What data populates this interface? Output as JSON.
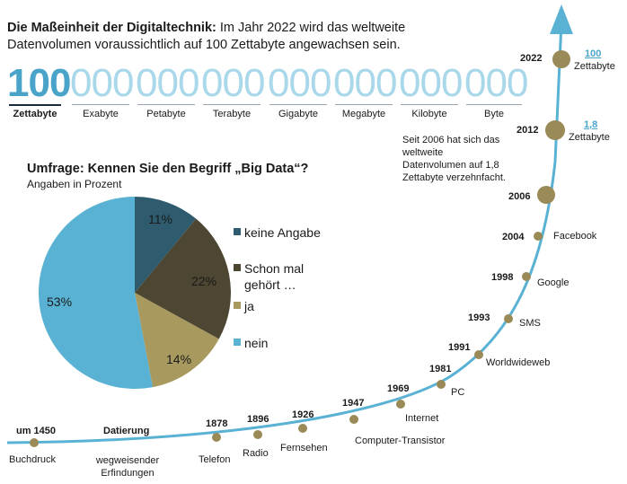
{
  "headline": {
    "bold": "Die Maßeinheit der Digitaltechnik:",
    "text": "Im Jahr 2022 wird das weltweite Datenvolumen voraussichtlich auf 100 Zettabyte angewachsen sein."
  },
  "units": [
    {
      "num": "100",
      "label": "Zettabyte"
    },
    {
      "num": "000",
      "label": "Exabyte"
    },
    {
      "num": "000",
      "label": "Petabyte"
    },
    {
      "num": "000",
      "label": "Terabyte"
    },
    {
      "num": "000",
      "label": "Gigabyte"
    },
    {
      "num": "000",
      "label": "Megabyte"
    },
    {
      "num": "000",
      "label": "Kilobyte"
    },
    {
      "num": "000",
      "label": "Byte"
    }
  ],
  "survey": {
    "title": "Umfrage: Kennen Sie den Begriff „Big Data“?",
    "subtitle": "Angaben in Prozent"
  },
  "chart_data": {
    "type": "pie",
    "title": "Umfrage: Kennen Sie den Begriff „Big Data“?",
    "subtitle": "Angaben in Prozent",
    "slices": [
      {
        "label": "keine Angabe",
        "value": 11,
        "pct": "11%",
        "color": "#2e5c6e"
      },
      {
        "label": "Schon mal gehört …",
        "value": 22,
        "pct": "22%",
        "color": "#4d4632"
      },
      {
        "label": "ja",
        "value": 14,
        "pct": "14%",
        "color": "#a89a5e"
      },
      {
        "label": "nein",
        "value": 53,
        "pct": "53%",
        "color": "#59b2d3"
      }
    ]
  },
  "legend": [
    {
      "label": "keine Angabe",
      "color": "#2e5c6e"
    },
    {
      "label_line1": "Schon mal",
      "label_line2": "gehört …",
      "color": "#4d4632"
    },
    {
      "label": "ja",
      "color": "#a89a5e"
    },
    {
      "label": "nein",
      "color": "#59b2d3"
    }
  ],
  "note": "Seit 2006 hat sich das weltweite Datenvolumen auf 1,8 Zettabyte verzehnfacht.",
  "timeline": {
    "axis_label": "Datierung",
    "axis_sub_line1": "wegweisender",
    "axis_sub_line2": "Erfindungen",
    "events": [
      {
        "year": "um 1450",
        "label": "Buchdruck"
      },
      {
        "year": "1878",
        "label": "Telefon"
      },
      {
        "year": "1896",
        "label": "Radio"
      },
      {
        "year": "1926",
        "label": "Fernsehen"
      },
      {
        "year": "1947",
        "label": "Computer-Transistor"
      },
      {
        "year": "1969",
        "label": "Internet"
      },
      {
        "year": "1981",
        "label": "PC"
      },
      {
        "year": "1991",
        "label": "Worldwideweb"
      },
      {
        "year": "1993",
        "label": "SMS"
      },
      {
        "year": "1998",
        "label": "Google"
      },
      {
        "year": "2004",
        "label": "Facebook"
      },
      {
        "year": "2006",
        "label": ""
      },
      {
        "year": "2012",
        "value": "1,8",
        "label": "Zettabyte"
      },
      {
        "year": "2022",
        "value": "100",
        "label": "Zettabyte"
      }
    ]
  },
  "colors": {
    "accent": "#4aa4c9",
    "curve": "#59b2d3",
    "dot": "#9a8a57"
  }
}
